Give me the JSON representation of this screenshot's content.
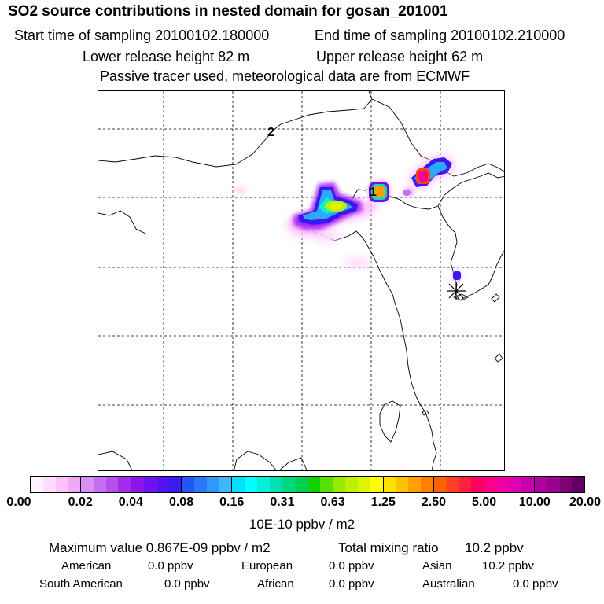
{
  "header": {
    "title": "SO2 source contributions in nested domain for gosan_201001",
    "start_label": "Start time of sampling 20100102.180000",
    "end_label": "End time of sampling 20100102.210000",
    "lower_label": "Lower release height   82 m",
    "upper_label": "Upper release height   62 m",
    "note": "Passive tracer used, meteorological data are from ECMWF"
  },
  "map": {
    "markers": {
      "release_1": "1",
      "release_2": "2"
    },
    "receptor_icon": "asterisk-receptor-icon"
  },
  "colorbar": {
    "tick_labels": [
      "0.00",
      "0.02",
      "0.04",
      "0.08",
      "0.16",
      "0.31",
      "0.63",
      "1.25",
      "2.50",
      "5.00",
      "10.00",
      "20.00"
    ],
    "groups": [
      [
        "#fff4ff",
        "#ffdcff",
        "#ffc2ff",
        "#f2a8f8"
      ],
      [
        "#d98ef5",
        "#c66ef2",
        "#b64ef0",
        "#a42aee"
      ],
      [
        "#8a16ee",
        "#6e10f0",
        "#5214f2",
        "#3a18f4"
      ],
      [
        "#2058f8",
        "#2878f8",
        "#3098f8",
        "#40b8f8"
      ],
      [
        "#00e0ff",
        "#00ffff",
        "#00f0d8",
        "#00e0b0"
      ],
      [
        "#00d880",
        "#00d050",
        "#10d000",
        "#58e000"
      ],
      [
        "#98e800",
        "#c0f000",
        "#e0f400",
        "#ffff00"
      ],
      [
        "#ffe000",
        "#ffc000",
        "#ffa000",
        "#ff8000"
      ],
      [
        "#ff6000",
        "#ff4020",
        "#ff2040",
        "#ff0060"
      ],
      [
        "#ff0088",
        "#f000a0",
        "#e000b0",
        "#c800b0"
      ],
      [
        "#b000a0",
        "#980090",
        "#800078",
        "#600060"
      ]
    ],
    "units": "10E-10 ppbv / m2"
  },
  "stats": {
    "max_label": "Maximum value  0.867E-09 ppbv / m2",
    "total_label": "Total mixing ratio",
    "total_value": "10.2 ppbv",
    "regions": [
      {
        "name": "American",
        "value": "0.0 ppbv"
      },
      {
        "name": "European",
        "value": "0.0 ppbv"
      },
      {
        "name": "Asian",
        "value": "10.2 ppbv"
      },
      {
        "name": "South American",
        "value": "0.0 ppbv"
      },
      {
        "name": "African",
        "value": "0.0 ppbv"
      },
      {
        "name": "Australian",
        "value": "0.0 ppbv"
      }
    ]
  }
}
